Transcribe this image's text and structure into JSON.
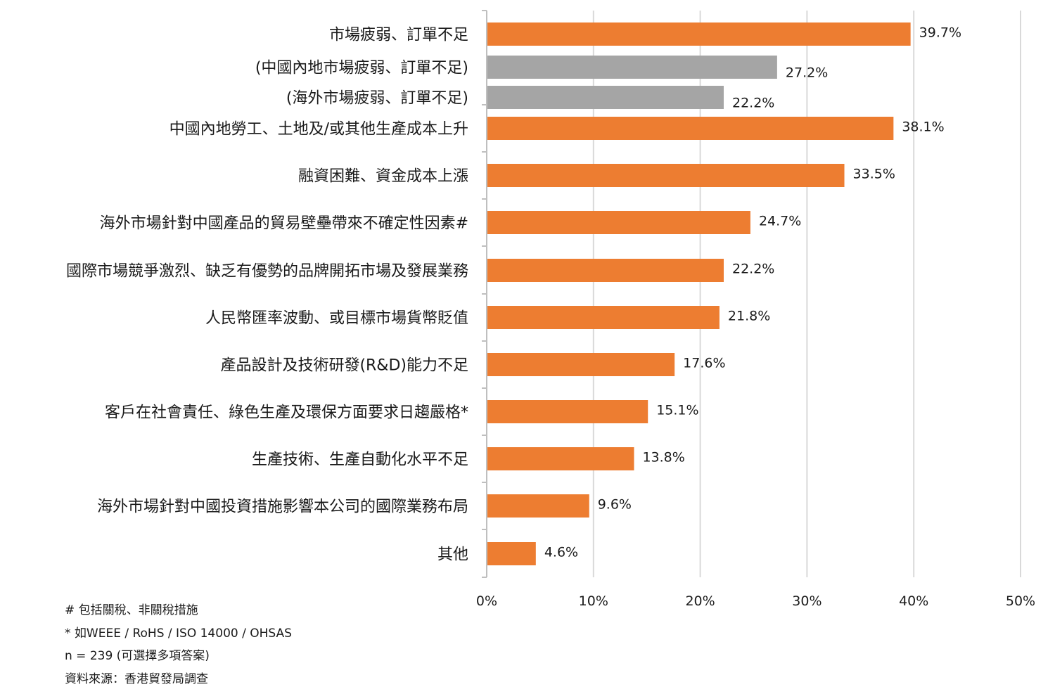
{
  "chart_data": {
    "type": "bar",
    "orientation": "horizontal",
    "categories": [
      "市場疲弱、訂單不足",
      "(中國內地市場疲弱、訂單不足)",
      "(海外市場疲弱、訂單不足)",
      "中國內地勞工、土地及/或其他生產成本上升",
      "融資困難、資金成本上漲",
      "海外市場針對中國產品的貿易壁壘帶來不確定性因素#",
      "國際市場競爭激烈、缺乏有優勢的品牌開拓市場及發展業務",
      "人民幣匯率波動、或目標市場貨幣貶值",
      "產品設計及技術研發(R&D)能力不足",
      "客戶在社會責任、綠色生產及環保方面要求日趨嚴格*",
      "生產技術、生產自動化水平不足",
      "海外市場針對中國投資措施影響本公司的國際業務布局",
      "其他"
    ],
    "values": [
      39.7,
      27.2,
      22.2,
      38.1,
      33.5,
      24.7,
      22.2,
      21.8,
      17.6,
      15.1,
      13.8,
      9.6,
      4.6
    ],
    "value_labels": [
      "39.7%",
      "27.2%",
      "22.2%",
      "38.1%",
      "33.5%",
      "24.7%",
      "22.2%",
      "21.8%",
      "17.6%",
      "15.1%",
      "13.8%",
      "9.6%",
      "4.6%"
    ],
    "bar_colors": [
      "#ED7D31",
      "#A5A5A5",
      "#A5A5A5",
      "#ED7D31",
      "#ED7D31",
      "#ED7D31",
      "#ED7D31",
      "#ED7D31",
      "#ED7D31",
      "#ED7D31",
      "#ED7D31",
      "#ED7D31",
      "#ED7D31"
    ],
    "xlim": [
      0,
      50
    ],
    "xticks": [
      0,
      10,
      20,
      30,
      40,
      50
    ],
    "xtick_labels": [
      "0%",
      "10%",
      "20%",
      "30%",
      "40%",
      "50%"
    ],
    "gridlines": true,
    "gridline_color": "#D9D9D9"
  },
  "notes": [
    "# 包括關稅、非關稅措施",
    "* 如WEEE / RoHS / ISO 14000 / OHSAS",
    "n = 239 (可選擇多項答案)",
    "資料來源：香港貿發局調查"
  ]
}
